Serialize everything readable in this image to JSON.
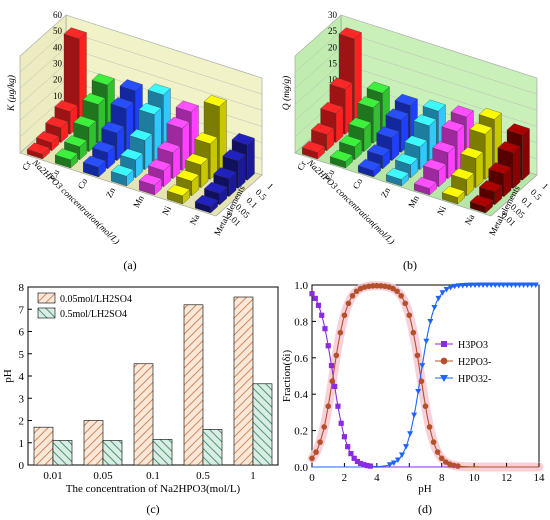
{
  "panels": {
    "a": "(a)",
    "b": "(b)",
    "c": "(c)",
    "d": "(d)"
  },
  "chart_data": [
    {
      "panel": "(a)",
      "type": "bar3d",
      "zlabel": "K (μg/kg)",
      "zlim": [
        0,
        60
      ],
      "zticks": [
        0,
        10,
        20,
        30,
        40,
        50,
        60
      ],
      "xlabel": "Na2HPO3 concentration(mol/L)",
      "x_categories": [
        "0.01",
        "0.05",
        "0.1",
        "0.5",
        "1"
      ],
      "ylabel": "Metal elements",
      "y_categories": [
        "Cr",
        "Cu",
        "Co",
        "Zn",
        "Mn",
        "Ni",
        "Na"
      ],
      "values": [
        [
          3,
          5,
          9,
          14,
          54
        ],
        [
          5,
          8,
          15,
          24,
          31
        ],
        [
          6,
          10,
          17,
          27,
          33
        ],
        [
          6,
          11,
          18,
          29,
          36
        ],
        [
          6,
          10,
          16,
          26,
          31
        ],
        [
          5,
          9,
          14,
          22,
          40
        ],
        [
          4,
          7,
          11,
          17,
          22
        ]
      ],
      "colors": [
        "#ff2020",
        "#30c030",
        "#1f3fff",
        "#30c8ff",
        "#ff40ff",
        "#c8c800",
        "#1a1a99"
      ]
    },
    {
      "panel": "(b)",
      "type": "bar3d",
      "zlabel": "Q (mg/g)",
      "zlim": [
        0,
        30
      ],
      "zticks": [
        0,
        5,
        10,
        15,
        20,
        25,
        30
      ],
      "xlabel": "Na2HPO3 concentration(mol/L)",
      "x_categories": [
        "0.01",
        "0.05",
        "0.1",
        "0.5",
        "1"
      ],
      "ylabel": "Metal elements",
      "y_categories": [
        "Cr",
        "Cu",
        "Co",
        "Zn",
        "Mn",
        "Ni",
        "Na"
      ],
      "values": [
        [
          2,
          5,
          9,
          14,
          27
        ],
        [
          2,
          4,
          7,
          11,
          13
        ],
        [
          2,
          4,
          7,
          10,
          12
        ],
        [
          2,
          4,
          7,
          11,
          13
        ],
        [
          2,
          5,
          8,
          12,
          14
        ],
        [
          2,
          5,
          9,
          14,
          16
        ],
        [
          2,
          4,
          7,
          11,
          14
        ]
      ],
      "colors": [
        "#ff2020",
        "#30c030",
        "#1f3fff",
        "#30c8ff",
        "#ff40ff",
        "#c8c800",
        "#8b0000"
      ]
    },
    {
      "panel": "(c)",
      "type": "bar",
      "categories": [
        "0.01",
        "0.05",
        "0.1",
        "0.5",
        "1"
      ],
      "series": [
        {
          "name": "0.05mol/LH2SO4",
          "values": [
            1.7,
            2.0,
            4.55,
            7.2,
            7.55
          ],
          "color": "#c87040"
        },
        {
          "name": "0.5mol/LH2SO4",
          "values": [
            1.1,
            1.1,
            1.15,
            1.6,
            3.65
          ],
          "color": "#2e7d5a"
        }
      ],
      "xlabel": "The concentration of Na2HPO3(mol/L)",
      "ylabel": "pH",
      "ylim": [
        0,
        8
      ],
      "yticks": [
        0,
        1,
        2,
        3,
        4,
        5,
        6,
        7,
        8
      ]
    },
    {
      "panel": "(d)",
      "type": "line",
      "xlabel": "pH",
      "ylabel": "Fraction(δi)",
      "xlim": [
        0,
        14
      ],
      "ylim": [
        0,
        1
      ],
      "xticks": [
        0,
        2,
        4,
        6,
        8,
        10,
        12,
        14
      ],
      "yticks": [
        "0.0",
        "0.2",
        "0.4",
        "0.6",
        "0.8",
        "1.0"
      ],
      "pKa1": 1.3,
      "pKa2": 6.7,
      "series": [
        {
          "name": "H3PO3",
          "color": "#8a2be2",
          "marker": "square"
        },
        {
          "name": "H2PO3-",
          "color": "#b5502a",
          "marker": "circle"
        },
        {
          "name": "HPO32-",
          "color": "#1e64ff",
          "marker": "triangle-down"
        }
      ]
    }
  ]
}
